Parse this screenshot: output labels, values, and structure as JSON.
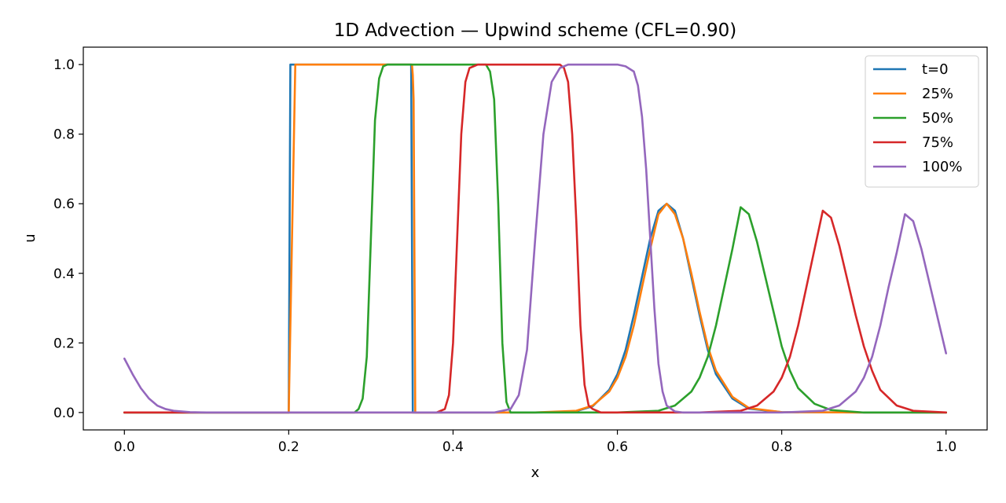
{
  "chart_data": {
    "type": "line",
    "title": "1D Advection — Upwind scheme (CFL=0.90)",
    "xlabel": "x",
    "ylabel": "u",
    "xlim": [
      -0.05,
      1.05
    ],
    "ylim": [
      -0.05,
      1.05
    ],
    "xticks": [
      0.0,
      0.2,
      0.4,
      0.6,
      0.8,
      1.0
    ],
    "xtick_labels": [
      "0.0",
      "0.2",
      "0.4",
      "0.6",
      "0.8",
      "1.0"
    ],
    "yticks": [
      0.0,
      0.2,
      0.4,
      0.6,
      0.8,
      1.0
    ],
    "ytick_labels": [
      "0.0",
      "0.2",
      "0.4",
      "0.6",
      "0.8",
      "1.0"
    ],
    "grid": false,
    "legend_position": "top-right",
    "series": [
      {
        "name": "t=0",
        "color": "#1f77b4",
        "x": [
          0.0,
          0.2,
          0.201,
          0.202,
          0.349,
          0.35,
          0.351,
          0.45,
          0.5,
          0.53,
          0.55,
          0.57,
          0.59,
          0.6,
          0.61,
          0.62,
          0.63,
          0.64,
          0.65,
          0.66,
          0.67,
          0.68,
          0.69,
          0.7,
          0.71,
          0.72,
          0.74,
          0.76,
          0.8,
          0.9,
          1.0
        ],
        "y": [
          0.0,
          0.0,
          0.5,
          1.0,
          1.0,
          0.5,
          0.0,
          0.0,
          0.0,
          0.001,
          0.004,
          0.018,
          0.065,
          0.11,
          0.18,
          0.28,
          0.39,
          0.5,
          0.58,
          0.6,
          0.58,
          0.5,
          0.39,
          0.28,
          0.18,
          0.11,
          0.04,
          0.011,
          0.001,
          0.0,
          0.0
        ]
      },
      {
        "name": "25%",
        "color": "#ff7f0e",
        "x": [
          0.0,
          0.2,
          0.204,
          0.208,
          0.35,
          0.351,
          0.352,
          0.353,
          0.354,
          0.45,
          0.5,
          0.55,
          0.57,
          0.59,
          0.6,
          0.61,
          0.62,
          0.63,
          0.64,
          0.65,
          0.66,
          0.67,
          0.68,
          0.69,
          0.7,
          0.71,
          0.72,
          0.74,
          0.76,
          0.8,
          0.9,
          1.0
        ],
        "y": [
          0.0,
          0.0,
          0.5,
          1.0,
          1.0,
          0.97,
          0.9,
          0.45,
          0.0,
          0.0,
          0.0,
          0.005,
          0.02,
          0.06,
          0.1,
          0.16,
          0.25,
          0.36,
          0.47,
          0.57,
          0.6,
          0.57,
          0.5,
          0.4,
          0.29,
          0.19,
          0.12,
          0.045,
          0.013,
          0.001,
          0.0,
          0.0
        ]
      },
      {
        "name": "50%",
        "color": "#2ca02c",
        "x": [
          0.0,
          0.28,
          0.285,
          0.29,
          0.295,
          0.3,
          0.305,
          0.31,
          0.315,
          0.32,
          0.44,
          0.445,
          0.45,
          0.455,
          0.46,
          0.465,
          0.47,
          0.6,
          0.65,
          0.67,
          0.69,
          0.7,
          0.71,
          0.72,
          0.73,
          0.74,
          0.75,
          0.76,
          0.77,
          0.78,
          0.79,
          0.8,
          0.81,
          0.82,
          0.84,
          0.86,
          0.9,
          1.0
        ],
        "y": [
          0.0,
          0.0,
          0.01,
          0.04,
          0.16,
          0.5,
          0.84,
          0.96,
          0.995,
          1.0,
          1.0,
          0.98,
          0.9,
          0.6,
          0.2,
          0.03,
          0.0,
          0.0,
          0.005,
          0.02,
          0.06,
          0.1,
          0.16,
          0.25,
          0.36,
          0.47,
          0.59,
          0.57,
          0.49,
          0.39,
          0.29,
          0.19,
          0.12,
          0.07,
          0.025,
          0.007,
          0.0,
          0.0
        ]
      },
      {
        "name": "75%",
        "color": "#d62728",
        "x": [
          0.0,
          0.38,
          0.39,
          0.395,
          0.4,
          0.405,
          0.41,
          0.415,
          0.42,
          0.43,
          0.53,
          0.535,
          0.54,
          0.545,
          0.55,
          0.555,
          0.56,
          0.565,
          0.57,
          0.58,
          0.65,
          0.7,
          0.75,
          0.77,
          0.79,
          0.8,
          0.81,
          0.82,
          0.83,
          0.84,
          0.85,
          0.86,
          0.87,
          0.88,
          0.89,
          0.9,
          0.91,
          0.92,
          0.94,
          0.96,
          1.0
        ],
        "y": [
          0.0,
          0.0,
          0.01,
          0.05,
          0.2,
          0.5,
          0.8,
          0.95,
          0.99,
          1.0,
          1.0,
          0.99,
          0.95,
          0.8,
          0.55,
          0.25,
          0.08,
          0.02,
          0.01,
          0.0,
          0.0,
          0.0,
          0.005,
          0.02,
          0.06,
          0.1,
          0.16,
          0.25,
          0.36,
          0.47,
          0.58,
          0.56,
          0.48,
          0.38,
          0.28,
          0.19,
          0.12,
          0.065,
          0.02,
          0.005,
          0.0
        ]
      },
      {
        "name": "100%",
        "color": "#9467bd",
        "x": [
          0.0,
          0.01,
          0.02,
          0.03,
          0.04,
          0.05,
          0.06,
          0.08,
          0.1,
          0.45,
          0.47,
          0.48,
          0.49,
          0.5,
          0.51,
          0.52,
          0.53,
          0.54,
          0.6,
          0.61,
          0.62,
          0.625,
          0.63,
          0.635,
          0.64,
          0.645,
          0.65,
          0.655,
          0.66,
          0.67,
          0.68,
          0.75,
          0.8,
          0.85,
          0.87,
          0.89,
          0.9,
          0.91,
          0.92,
          0.93,
          0.94,
          0.95,
          0.96,
          0.97,
          0.98,
          0.99,
          1.0
        ],
        "y": [
          0.155,
          0.11,
          0.07,
          0.04,
          0.02,
          0.01,
          0.005,
          0.001,
          0.0,
          0.0,
          0.01,
          0.05,
          0.18,
          0.5,
          0.8,
          0.95,
          0.99,
          1.0,
          1.0,
          0.995,
          0.98,
          0.94,
          0.85,
          0.7,
          0.5,
          0.3,
          0.14,
          0.06,
          0.02,
          0.003,
          0.0,
          0.0,
          0.0,
          0.005,
          0.02,
          0.06,
          0.1,
          0.16,
          0.25,
          0.36,
          0.46,
          0.57,
          0.55,
          0.47,
          0.37,
          0.27,
          0.17
        ]
      }
    ]
  }
}
